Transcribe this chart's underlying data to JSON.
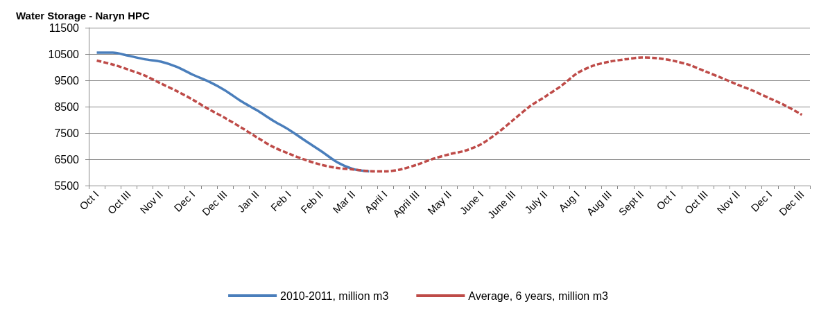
{
  "chart_data": {
    "type": "line",
    "title": "Water Storage - Naryn HPC",
    "categories": [
      "Oct I",
      null,
      "Oct III",
      null,
      "Nov II",
      null,
      "Dec I",
      null,
      "Dec III",
      null,
      "Jan II",
      null,
      "Feb I",
      null,
      "Feb II",
      null,
      "Mar II",
      null,
      "April I",
      null,
      "April III",
      null,
      "May II",
      null,
      "June I",
      null,
      "June III",
      null,
      "July II",
      null,
      "Aug I",
      null,
      "Aug III",
      null,
      "Sept II",
      null,
      "Oct I",
      null,
      "Oct III",
      null,
      "Nov II",
      null,
      "Dec I",
      null,
      "Dec III"
    ],
    "series": [
      {
        "name": "2010-2011, million m3",
        "color": "#4a7ebb",
        "line_style": "solid",
        "values": [
          10550,
          10550,
          10430,
          10300,
          10210,
          10010,
          9710,
          9450,
          9120,
          8710,
          8360,
          7970,
          7620,
          7210,
          6810,
          6390,
          6130,
          6040,
          null,
          null,
          null,
          null,
          null,
          null,
          null,
          null,
          null,
          null,
          null,
          null,
          null,
          null,
          null,
          null,
          null,
          null,
          null,
          null,
          null,
          null,
          null,
          null,
          null,
          null,
          null
        ]
      },
      {
        "name": "Average, 6 years, million m3",
        "color": "#be4b48",
        "line_style": "dashed",
        "values": [
          10250,
          10100,
          9900,
          9680,
          9380,
          9090,
          8760,
          8400,
          8070,
          7710,
          7330,
          6970,
          6710,
          6480,
          6290,
          6170,
          6110,
          6050,
          6040,
          6120,
          6300,
          6520,
          6690,
          6830,
          7080,
          7500,
          8000,
          8500,
          8890,
          9300,
          9780,
          10060,
          10210,
          10300,
          10370,
          10340,
          10240,
          10080,
          9830,
          9590,
          9330,
          9090,
          8810,
          8530,
          8190
        ]
      }
    ],
    "ylim": [
      5500,
      11500
    ],
    "yticks": [
      5500,
      6500,
      7500,
      8500,
      9500,
      10500,
      11500
    ],
    "grid": "y",
    "legend": "bottom",
    "marker": "none"
  }
}
